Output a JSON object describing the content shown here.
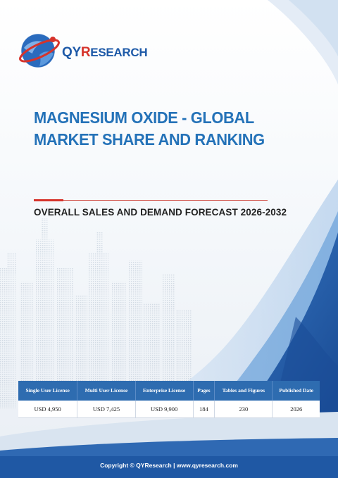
{
  "logo": {
    "brand_qy": "QY",
    "brand_r": "R",
    "brand_rest": "ESEARCH"
  },
  "report": {
    "title": "MAGNESIUM OXIDE - GLOBAL MARKET SHARE AND RANKING",
    "subtitle": "OVERALL SALES AND DEMAND FORECAST 2026-2032"
  },
  "info_table": {
    "headers": [
      "Single User License",
      "Multi User License",
      "Enterprise License",
      "Pages",
      "Tables and Figures",
      "Published Date"
    ],
    "values": [
      "USD 4,950",
      "USD 7,425",
      "USD 9,900",
      "184",
      "230",
      "2026"
    ]
  },
  "footer": {
    "text": "Copyright © QYResearch | www.qyresearch.com"
  },
  "colors": {
    "brand_blue": "#2472b8",
    "accent_red": "#d6332b",
    "table_header": "#2e6cb0",
    "wave_dark": "#1b4f9c"
  }
}
